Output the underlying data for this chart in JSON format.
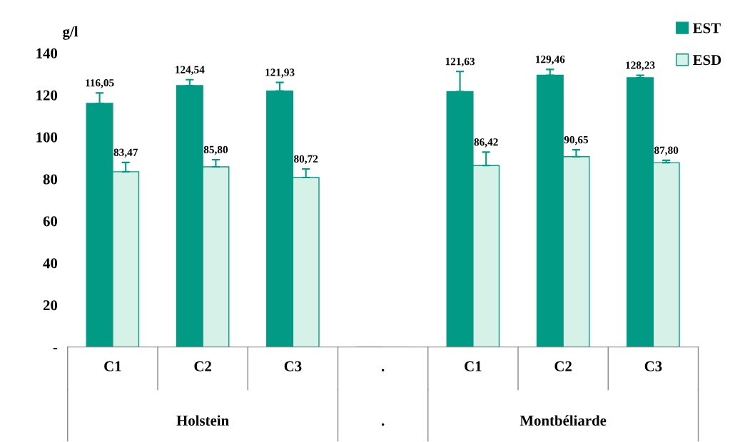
{
  "chart_data": {
    "type": "bar",
    "ylabel": "g/l",
    "categories": [
      "C1",
      "C2",
      "C3",
      ".",
      "C1",
      "C2",
      "C3"
    ],
    "series": [
      {
        "name": "EST",
        "color": "#009a85",
        "values": [
          116.05,
          124.54,
          121.93,
          0,
          121.63,
          129.46,
          128.23
        ],
        "errors": [
          [
            116.05,
            121.0
          ],
          [
            124.54,
            127.3
          ],
          [
            121.93,
            126.0
          ],
          null,
          [
            121.63,
            131.2
          ],
          [
            129.46,
            132.2
          ],
          [
            128.23,
            129.4
          ]
        ],
        "value_labels": [
          "116,05",
          "124,54",
          "121,93",
          null,
          "121,63",
          "129,46",
          "128,23"
        ]
      },
      {
        "name": "ESD",
        "color": "#d6f1e7",
        "values": [
          83.47,
          85.8,
          80.72,
          0,
          86.42,
          90.65,
          87.8
        ],
        "errors": [
          [
            83.47,
            87.9
          ],
          [
            85.8,
            89.2
          ],
          [
            80.72,
            84.8
          ],
          null,
          [
            86.42,
            92.8
          ],
          [
            90.65,
            93.9
          ],
          [
            87.8,
            88.9
          ]
        ],
        "value_labels": [
          "83,47",
          "85,80",
          "80,72",
          null,
          "86,42",
          "90,65",
          "87,80"
        ]
      }
    ],
    "annotations": [
      "Holstein",
      ".",
      "Montbéliarde"
    ],
    "ylim": [
      0,
      140
    ],
    "yticks": [
      {
        "value": 0,
        "label": "-"
      },
      20,
      40,
      60,
      80,
      100,
      120,
      140
    ],
    "grid": false,
    "legend": "top right"
  }
}
